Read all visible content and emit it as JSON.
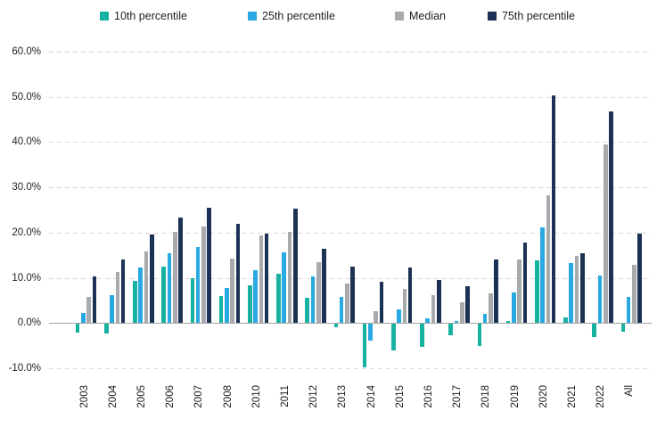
{
  "chart_data": {
    "type": "bar",
    "title": "",
    "xlabel": "",
    "ylabel": "",
    "value_unit": "%",
    "ylim": [
      -10,
      60
    ],
    "ytick_values": [
      60,
      50,
      40,
      30,
      20,
      10,
      0,
      -10
    ],
    "ytick_labels": [
      "60.0%",
      "50.0%",
      "40.0%",
      "30.0%",
      "20.0%",
      "10.0%",
      "0.0%",
      "-10.0%"
    ],
    "grid": "horizontal-dashed",
    "legend_position": "top",
    "categories": [
      "2003",
      "2004",
      "2005",
      "2006",
      "2007",
      "2008",
      "2010",
      "2011",
      "2012",
      "2013",
      "2014",
      "2015",
      "2016",
      "2017",
      "2018",
      "2019",
      "2020",
      "2021",
      "2022",
      "All"
    ],
    "series": [
      {
        "name": "10th percentile",
        "color": "#17b1a1",
        "values": [
          -1.9,
          -2.1,
          9.3,
          12.4,
          10.0,
          6.0,
          8.3,
          10.9,
          5.6,
          -0.8,
          -9.7,
          -5.8,
          -5.1,
          -2.6,
          -4.9,
          0.5,
          13.9,
          1.3,
          -2.9,
          -1.8
        ]
      },
      {
        "name": "25th percentile",
        "color": "#29a9e1",
        "values": [
          2.3,
          6.2,
          12.2,
          15.5,
          16.8,
          7.7,
          11.7,
          15.7,
          10.3,
          5.7,
          -3.6,
          3.0,
          1.1,
          0.5,
          2.0,
          6.7,
          21.1,
          13.3,
          10.5,
          5.8
        ]
      },
      {
        "name": "Median",
        "color": "#a8aaad",
        "values": [
          5.8,
          11.3,
          15.9,
          20.1,
          21.3,
          14.3,
          19.3,
          20.2,
          13.5,
          8.8,
          2.6,
          7.6,
          6.1,
          4.5,
          6.5,
          14.0,
          28.3,
          14.9,
          39.5,
          12.8
        ]
      },
      {
        "name": "75th percentile",
        "color": "#1c3254",
        "values": [
          10.3,
          14.0,
          19.6,
          23.3,
          25.4,
          21.9,
          19.7,
          25.3,
          16.4,
          12.5,
          9.1,
          12.3,
          9.5,
          8.1,
          14.0,
          17.8,
          50.4,
          15.5,
          46.8,
          19.7
        ]
      }
    ]
  },
  "colors": {
    "background": "#ffffff",
    "gridline": "#d9d9d9",
    "zero_axis": "#a3a3a3",
    "text": "#1f1f1f"
  }
}
